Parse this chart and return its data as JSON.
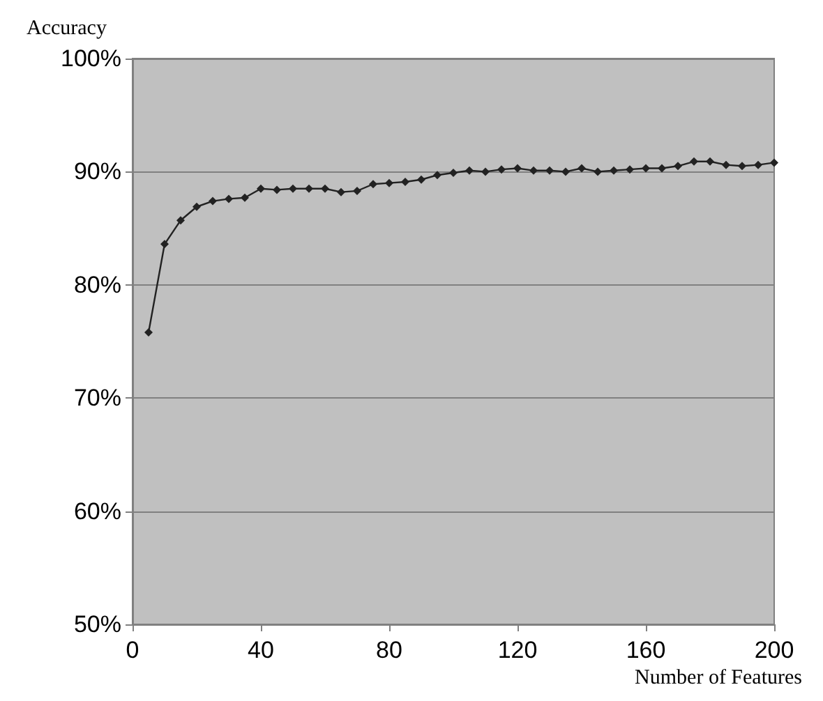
{
  "chart_data": {
    "type": "line",
    "ylabel": "Accuracy",
    "xlabel": "Number of Features",
    "x": [
      5,
      10,
      15,
      20,
      25,
      30,
      35,
      40,
      45,
      50,
      55,
      60,
      65,
      70,
      75,
      80,
      85,
      90,
      95,
      100,
      105,
      110,
      115,
      120,
      125,
      130,
      135,
      140,
      145,
      150,
      155,
      160,
      165,
      170,
      175,
      180,
      185,
      190,
      195,
      200
    ],
    "series": [
      {
        "color": "#222222",
        "values": [
          75.8,
          83.6,
          85.7,
          86.9,
          87.4,
          87.6,
          87.7,
          88.5,
          88.4,
          88.5,
          88.5,
          88.5,
          88.2,
          88.3,
          88.9,
          89.0,
          89.1,
          89.3,
          89.7,
          89.9,
          90.1,
          90.0,
          90.2,
          90.3,
          90.1,
          90.1,
          90.0,
          90.3,
          90.0,
          90.1,
          90.2,
          90.3,
          90.3,
          90.5,
          90.9,
          90.9,
          90.6,
          90.5,
          90.6,
          90.8
        ]
      }
    ],
    "xlim": [
      0,
      200
    ],
    "xticks": [
      0,
      40,
      80,
      120,
      160,
      200
    ],
    "ylim": [
      50,
      100
    ],
    "yticks": [
      {
        "value": 50,
        "label": "50%"
      },
      {
        "value": 60,
        "label": "60%"
      },
      {
        "value": 70,
        "label": "70%"
      },
      {
        "value": 80,
        "label": "80%"
      },
      {
        "value": 90,
        "label": "90%"
      },
      {
        "value": 100,
        "label": "100%"
      }
    ],
    "grid": "y",
    "marker": "diamond",
    "line_style": "solid"
  }
}
